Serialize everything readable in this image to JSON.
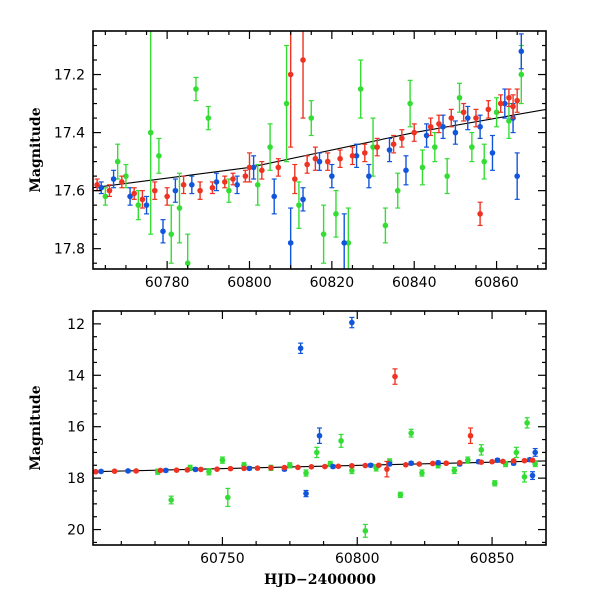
{
  "colors": {
    "green": "#33dd33",
    "blue": "#1155dd",
    "red": "#ee3322",
    "trend": "#000000"
  },
  "chart_data": [
    {
      "type": "scatter",
      "panel": "top",
      "xlabel": "",
      "ylabel": "Magnitude",
      "xlim": [
        60762,
        60872
      ],
      "ylim": [
        17.87,
        17.05
      ],
      "y_inverted": true,
      "xticks": [
        60780,
        60800,
        60820,
        60840,
        60860
      ],
      "yticks": [
        17.2,
        17.4,
        17.6,
        17.8
      ],
      "trend": {
        "x": [
          60762,
          60800,
          60840,
          60872
        ],
        "y": [
          17.59,
          17.52,
          17.4,
          17.32
        ]
      },
      "series": [
        {
          "color": "#33dd33",
          "points": [
            [
              60765,
              17.62,
              0.03
            ],
            [
              60768,
              17.5,
              0.06
            ],
            [
              60770,
              17.55,
              0.04
            ],
            [
              60773,
              17.65,
              0.05
            ],
            [
              60776,
              17.4,
              0.35
            ],
            [
              60778,
              17.48,
              0.06
            ],
            [
              60781,
              17.75,
              0.1
            ],
            [
              60783,
              17.66,
              0.12
            ],
            [
              60785,
              17.85,
              0.1
            ],
            [
              60787,
              17.25,
              0.04
            ],
            [
              60790,
              17.35,
              0.04
            ],
            [
              60795,
              17.6,
              0.04
            ],
            [
              60802,
              17.58,
              0.07
            ],
            [
              60805,
              17.45,
              0.08
            ],
            [
              60809,
              17.3,
              0.2
            ],
            [
              60812,
              17.65,
              0.08
            ],
            [
              60815,
              17.35,
              0.06
            ],
            [
              60818,
              17.75,
              0.1
            ],
            [
              60821,
              17.68,
              0.08
            ],
            [
              60824,
              17.78,
              0.12
            ],
            [
              60827,
              17.25,
              0.1
            ],
            [
              60830,
              17.45,
              0.1
            ],
            [
              60833,
              17.72,
              0.06
            ],
            [
              60836,
              17.6,
              0.06
            ],
            [
              60839,
              17.3,
              0.08
            ],
            [
              60842,
              17.52,
              0.06
            ],
            [
              60845,
              17.45,
              0.05
            ],
            [
              60848,
              17.55,
              0.06
            ],
            [
              60851,
              17.28,
              0.05
            ],
            [
              60854,
              17.45,
              0.05
            ],
            [
              60857,
              17.5,
              0.06
            ],
            [
              60860,
              17.33,
              0.05
            ],
            [
              60863,
              17.36,
              0.06
            ],
            [
              60866,
              17.2,
              0.1
            ]
          ]
        },
        {
          "color": "#1155dd",
          "points": [
            [
              60764,
              17.59,
              0.02
            ],
            [
              60767,
              17.56,
              0.03
            ],
            [
              60771,
              17.62,
              0.03
            ],
            [
              60775,
              17.65,
              0.03
            ],
            [
              60779,
              17.74,
              0.04
            ],
            [
              60782,
              17.6,
              0.04
            ],
            [
              60786,
              17.58,
              0.03
            ],
            [
              60792,
              17.57,
              0.03
            ],
            [
              60797,
              17.58,
              0.03
            ],
            [
              60801,
              17.52,
              0.04
            ],
            [
              60806,
              17.62,
              0.06
            ],
            [
              60810,
              17.78,
              0.12
            ],
            [
              60813,
              17.63,
              0.04
            ],
            [
              60817,
              17.5,
              0.03
            ],
            [
              60820,
              17.55,
              0.04
            ],
            [
              60823,
              17.78,
              0.1
            ],
            [
              60826,
              17.48,
              0.04
            ],
            [
              60829,
              17.55,
              0.04
            ],
            [
              60834,
              17.46,
              0.04
            ],
            [
              60838,
              17.53,
              0.05
            ],
            [
              60843,
              17.41,
              0.04
            ],
            [
              60847,
              17.38,
              0.04
            ],
            [
              60850,
              17.4,
              0.04
            ],
            [
              60853,
              17.35,
              0.04
            ],
            [
              60856,
              17.38,
              0.04
            ],
            [
              60859,
              17.47,
              0.06
            ],
            [
              60862,
              17.3,
              0.05
            ],
            [
              60864,
              17.35,
              0.05
            ],
            [
              60865,
              17.55,
              0.08
            ],
            [
              60866,
              17.12,
              0.06
            ]
          ]
        },
        {
          "color": "#ee3322",
          "points": [
            [
              60763,
              17.58,
              0.02
            ],
            [
              60766,
              17.6,
              0.02
            ],
            [
              60769,
              17.57,
              0.02
            ],
            [
              60772,
              17.61,
              0.02
            ],
            [
              60774,
              17.63,
              0.03
            ],
            [
              60777,
              17.6,
              0.03
            ],
            [
              60780,
              17.62,
              0.03
            ],
            [
              60784,
              17.58,
              0.03
            ],
            [
              60788,
              17.6,
              0.03
            ],
            [
              60791,
              17.59,
              0.02
            ],
            [
              60794,
              17.57,
              0.02
            ],
            [
              60796,
              17.56,
              0.02
            ],
            [
              60799,
              17.55,
              0.02
            ],
            [
              60803,
              17.53,
              0.03
            ],
            [
              60807,
              17.52,
              0.03
            ],
            [
              60811,
              17.56,
              0.05
            ],
            [
              60814,
              17.51,
              0.03
            ],
            [
              60816,
              17.49,
              0.04
            ],
            [
              60819,
              17.5,
              0.03
            ],
            [
              60822,
              17.49,
              0.03
            ],
            [
              60825,
              17.48,
              0.03
            ],
            [
              60828,
              17.47,
              0.03
            ],
            [
              60831,
              17.45,
              0.03
            ],
            [
              60835,
              17.44,
              0.03
            ],
            [
              60837,
              17.42,
              0.03
            ],
            [
              60840,
              17.4,
              0.03
            ],
            [
              60844,
              17.38,
              0.03
            ],
            [
              60846,
              17.37,
              0.03
            ],
            [
              60849,
              17.35,
              0.03
            ],
            [
              60852,
              17.33,
              0.03
            ],
            [
              60855,
              17.35,
              0.03
            ],
            [
              60858,
              17.32,
              0.03
            ],
            [
              60861,
              17.3,
              0.03
            ],
            [
              60863,
              17.28,
              0.03
            ],
            [
              60864,
              17.31,
              0.04
            ],
            [
              60865,
              17.29,
              0.04
            ],
            [
              60810,
              17.2,
              0.25
            ],
            [
              60813,
              17.15,
              0.2
            ],
            [
              60856,
              17.68,
              0.04
            ],
            [
              60800,
              17.52,
              0.05
            ]
          ]
        }
      ]
    },
    {
      "type": "scatter",
      "panel": "bottom",
      "xlabel": "HJD−2400000",
      "ylabel": "Magnitude",
      "xlim": [
        60702,
        60870
      ],
      "ylim": [
        20.6,
        11.5
      ],
      "y_inverted": true,
      "xticks": [
        60750,
        60800,
        60850
      ],
      "yticks": [
        12,
        14,
        16,
        18,
        20
      ],
      "trend": {
        "x": [
          60702,
          60870
        ],
        "y": [
          17.75,
          17.33
        ]
      },
      "series": [
        {
          "color": "#33dd33",
          "points": [
            [
              60726,
              17.75,
              0.1
            ],
            [
              60731,
              18.85,
              0.15
            ],
            [
              60738,
              17.6,
              0.1
            ],
            [
              60745,
              17.75,
              0.12
            ],
            [
              60750,
              17.3,
              0.12
            ],
            [
              60752,
              18.75,
              0.35
            ],
            [
              60758,
              17.5,
              0.1
            ],
            [
              60768,
              17.6,
              0.1
            ],
            [
              60775,
              17.5,
              0.1
            ],
            [
              60781,
              17.8,
              0.12
            ],
            [
              60785,
              17.0,
              0.2
            ],
            [
              60790,
              17.45,
              0.1
            ],
            [
              60794,
              16.55,
              0.25
            ],
            [
              60798,
              17.7,
              0.12
            ],
            [
              60803,
              20.05,
              0.25
            ],
            [
              60807,
              17.6,
              0.12
            ],
            [
              60812,
              17.35,
              0.1
            ],
            [
              60816,
              18.65,
              0.1
            ],
            [
              60820,
              16.25,
              0.15
            ],
            [
              60824,
              17.8,
              0.12
            ],
            [
              60830,
              17.5,
              0.1
            ],
            [
              60836,
              17.7,
              0.12
            ],
            [
              60841,
              17.3,
              0.12
            ],
            [
              60846,
              16.9,
              0.2
            ],
            [
              60851,
              18.2,
              0.1
            ],
            [
              60855,
              17.45,
              0.1
            ],
            [
              60859,
              17.0,
              0.2
            ],
            [
              60863,
              15.85,
              0.2
            ],
            [
              60862,
              17.95,
              0.2
            ],
            [
              60866,
              17.45,
              0.1
            ]
          ]
        },
        {
          "color": "#1155dd",
          "points": [
            [
              60705,
              17.74,
              0.05
            ],
            [
              60715,
              17.72,
              0.05
            ],
            [
              60729,
              17.7,
              0.06
            ],
            [
              60740,
              17.66,
              0.06
            ],
            [
              60760,
              17.62,
              0.06
            ],
            [
              60773,
              17.65,
              0.06
            ],
            [
              60779,
              12.95,
              0.2
            ],
            [
              60781,
              18.6,
              0.12
            ],
            [
              60786,
              16.35,
              0.3
            ],
            [
              60791,
              17.55,
              0.06
            ],
            [
              60798,
              11.95,
              0.2
            ],
            [
              60805,
              17.5,
              0.06
            ],
            [
              60812,
              17.45,
              0.06
            ],
            [
              60820,
              17.42,
              0.06
            ],
            [
              60830,
              17.4,
              0.06
            ],
            [
              60838,
              17.45,
              0.06
            ],
            [
              60845,
              17.36,
              0.06
            ],
            [
              60852,
              17.3,
              0.06
            ],
            [
              60858,
              17.42,
              0.06
            ],
            [
              60864,
              17.28,
              0.06
            ],
            [
              60865,
              17.9,
              0.15
            ],
            [
              60866,
              17.0,
              0.15
            ]
          ]
        },
        {
          "color": "#ee3322",
          "points": [
            [
              60703,
              17.75,
              0.04
            ],
            [
              60710,
              17.73,
              0.04
            ],
            [
              60718,
              17.72,
              0.04
            ],
            [
              60727,
              17.7,
              0.04
            ],
            [
              60733,
              17.69,
              0.04
            ],
            [
              60737,
              17.68,
              0.04
            ],
            [
              60742,
              17.66,
              0.04
            ],
            [
              60748,
              17.65,
              0.04
            ],
            [
              60753,
              17.63,
              0.04
            ],
            [
              60758,
              17.62,
              0.04
            ],
            [
              60763,
              17.61,
              0.04
            ],
            [
              60768,
              17.6,
              0.04
            ],
            [
              60773,
              17.59,
              0.04
            ],
            [
              60778,
              17.58,
              0.04
            ],
            [
              60783,
              17.56,
              0.04
            ],
            [
              60788,
              17.55,
              0.04
            ],
            [
              60793,
              17.54,
              0.04
            ],
            [
              60798,
              17.52,
              0.04
            ],
            [
              60803,
              17.51,
              0.04
            ],
            [
              60808,
              17.5,
              0.04
            ],
            [
              60811,
              17.65,
              0.3
            ],
            [
              60814,
              14.05,
              0.3
            ],
            [
              60818,
              17.48,
              0.04
            ],
            [
              60823,
              17.45,
              0.04
            ],
            [
              60828,
              17.43,
              0.04
            ],
            [
              60833,
              17.42,
              0.04
            ],
            [
              60838,
              17.4,
              0.04
            ],
            [
              60842,
              16.35,
              0.3
            ],
            [
              60846,
              17.38,
              0.04
            ],
            [
              60850,
              17.36,
              0.04
            ],
            [
              60854,
              17.35,
              0.04
            ],
            [
              60858,
              17.33,
              0.04
            ],
            [
              60862,
              17.32,
              0.04
            ],
            [
              60865,
              17.3,
              0.04
            ]
          ]
        }
      ]
    }
  ]
}
